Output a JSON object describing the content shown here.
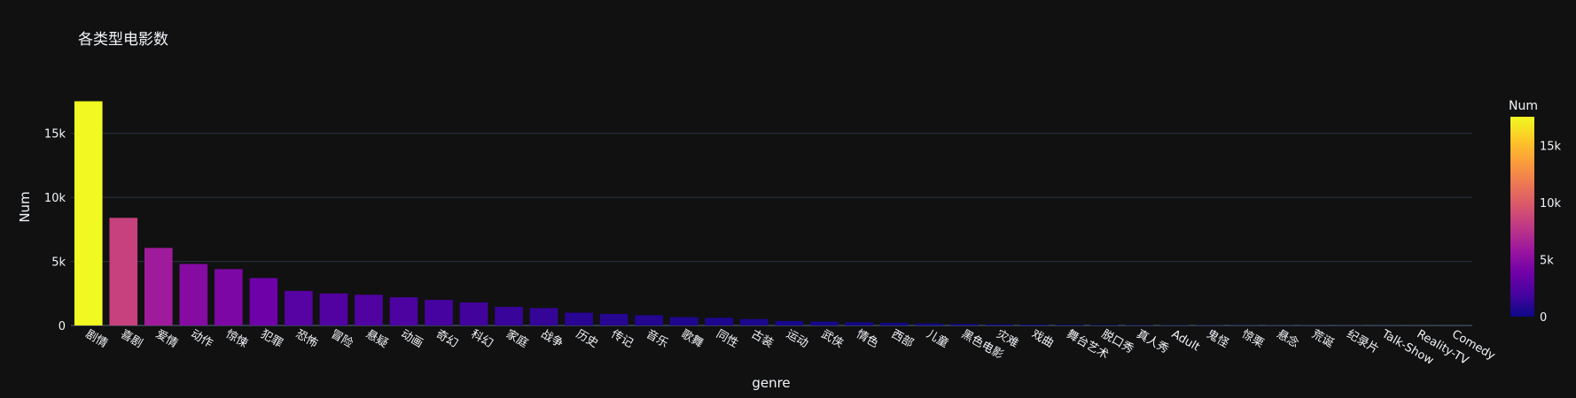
{
  "chart_data": {
    "type": "bar",
    "title": "各类型电影数",
    "xlabel": "genre",
    "ylabel": "Num",
    "ylim": [
      0,
      18500
    ],
    "yticks": [
      0,
      5000,
      10000,
      15000
    ],
    "ytick_labels": [
      "0",
      "5k",
      "10k",
      "15k"
    ],
    "grid": true,
    "categories": [
      "剧情",
      "喜剧",
      "爱情",
      "动作",
      "惊悚",
      "犯罪",
      "恐怖",
      "冒险",
      "悬疑",
      "动画",
      "奇幻",
      "科幻",
      "家庭",
      "战争",
      "历史",
      "传记",
      "音乐",
      "歌舞",
      "同性",
      "古装",
      "运动",
      "武侠",
      "情色",
      "西部",
      "儿童",
      "黑色电影",
      "灾难",
      "戏曲",
      "舞台艺术",
      "脱口秀",
      "真人秀",
      "Adult",
      "鬼怪",
      "惊栗",
      "悬念",
      "荒诞",
      "纪录片",
      "Talk-Show",
      "Reality-TV",
      "Comedy"
    ],
    "values": [
      17500,
      8400,
      6050,
      4800,
      4400,
      3700,
      2700,
      2500,
      2400,
      2200,
      2000,
      1800,
      1450,
      1350,
      1000,
      900,
      800,
      650,
      600,
      500,
      350,
      300,
      250,
      200,
      150,
      120,
      90,
      70,
      50,
      40,
      30,
      25,
      20,
      15,
      12,
      10,
      8,
      5,
      3,
      2
    ],
    "colorbar": {
      "title": "Num",
      "range": [
        0,
        17500
      ],
      "ticks": [
        0,
        5000,
        10000,
        15000
      ],
      "tick_labels": [
        "0",
        "5k",
        "10k",
        "15k"
      ],
      "colorscale": [
        "#0d0887",
        "#46039f",
        "#7201a8",
        "#9c179e",
        "#bd3786",
        "#d8576b",
        "#ed7953",
        "#fb9f3a",
        "#fdca26",
        "#f0f921"
      ]
    },
    "colors": {
      "background": "#111111",
      "grid": "#283442",
      "text": "#f2f5fa"
    }
  }
}
